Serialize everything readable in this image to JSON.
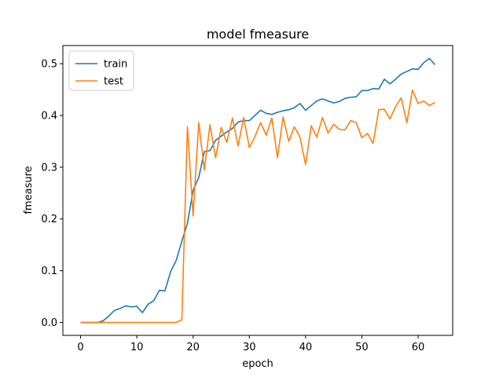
{
  "chart_data": {
    "type": "line",
    "title": "model fmeasure",
    "xlabel": "epoch",
    "ylabel": "fmeasure",
    "xlim": [
      -3.15,
      66.15
    ],
    "ylim": [
      -0.025,
      0.535
    ],
    "xticks": [
      0,
      10,
      20,
      30,
      40,
      50,
      60
    ],
    "yticks": [
      0.0,
      0.1,
      0.2,
      0.3,
      0.4,
      0.5
    ],
    "ytick_labels": [
      "0.0",
      "0.1",
      "0.2",
      "0.3",
      "0.4",
      "0.5"
    ],
    "grid": false,
    "legend_position": "top-left",
    "x": [
      0,
      1,
      2,
      3,
      4,
      5,
      6,
      7,
      8,
      9,
      10,
      11,
      12,
      13,
      14,
      15,
      16,
      17,
      18,
      19,
      20,
      21,
      22,
      23,
      24,
      25,
      26,
      27,
      28,
      29,
      30,
      31,
      32,
      33,
      34,
      35,
      36,
      37,
      38,
      39,
      40,
      41,
      42,
      43,
      44,
      45,
      46,
      47,
      48,
      49,
      50,
      51,
      52,
      53,
      54,
      55,
      56,
      57,
      58,
      59,
      60,
      61,
      62,
      63
    ],
    "series": [
      {
        "name": "train",
        "color": "#1f77b4",
        "values": [
          0.0,
          0.0,
          0.0,
          0.0,
          0.003,
          0.012,
          0.023,
          0.027,
          0.032,
          0.03,
          0.031,
          0.019,
          0.035,
          0.042,
          0.062,
          0.061,
          0.098,
          0.12,
          0.157,
          0.192,
          0.255,
          0.28,
          0.33,
          0.332,
          0.352,
          0.36,
          0.368,
          0.375,
          0.387,
          0.39,
          0.39,
          0.4,
          0.41,
          0.404,
          0.402,
          0.406,
          0.409,
          0.411,
          0.415,
          0.423,
          0.41,
          0.419,
          0.428,
          0.432,
          0.428,
          0.424,
          0.427,
          0.433,
          0.435,
          0.436,
          0.448,
          0.448,
          0.452,
          0.451,
          0.47,
          0.461,
          0.47,
          0.48,
          0.485,
          0.49,
          0.489,
          0.502,
          0.51,
          0.498
        ]
      },
      {
        "name": "test",
        "color": "#ff7f0e",
        "values": [
          0.0,
          0.0,
          0.0,
          0.0,
          0.0,
          0.0,
          0.0,
          0.0,
          0.0,
          0.0,
          0.0,
          0.0,
          0.0,
          0.0,
          0.0,
          0.0,
          0.0,
          0.0,
          0.005,
          0.378,
          0.206,
          0.386,
          0.295,
          0.382,
          0.318,
          0.377,
          0.348,
          0.395,
          0.341,
          0.396,
          0.338,
          0.359,
          0.386,
          0.362,
          0.395,
          0.318,
          0.397,
          0.35,
          0.378,
          0.358,
          0.305,
          0.38,
          0.358,
          0.396,
          0.366,
          0.383,
          0.373,
          0.372,
          0.39,
          0.386,
          0.357,
          0.365,
          0.346,
          0.411,
          0.412,
          0.393,
          0.417,
          0.434,
          0.386,
          0.449,
          0.423,
          0.428,
          0.419,
          0.425
        ]
      }
    ]
  }
}
